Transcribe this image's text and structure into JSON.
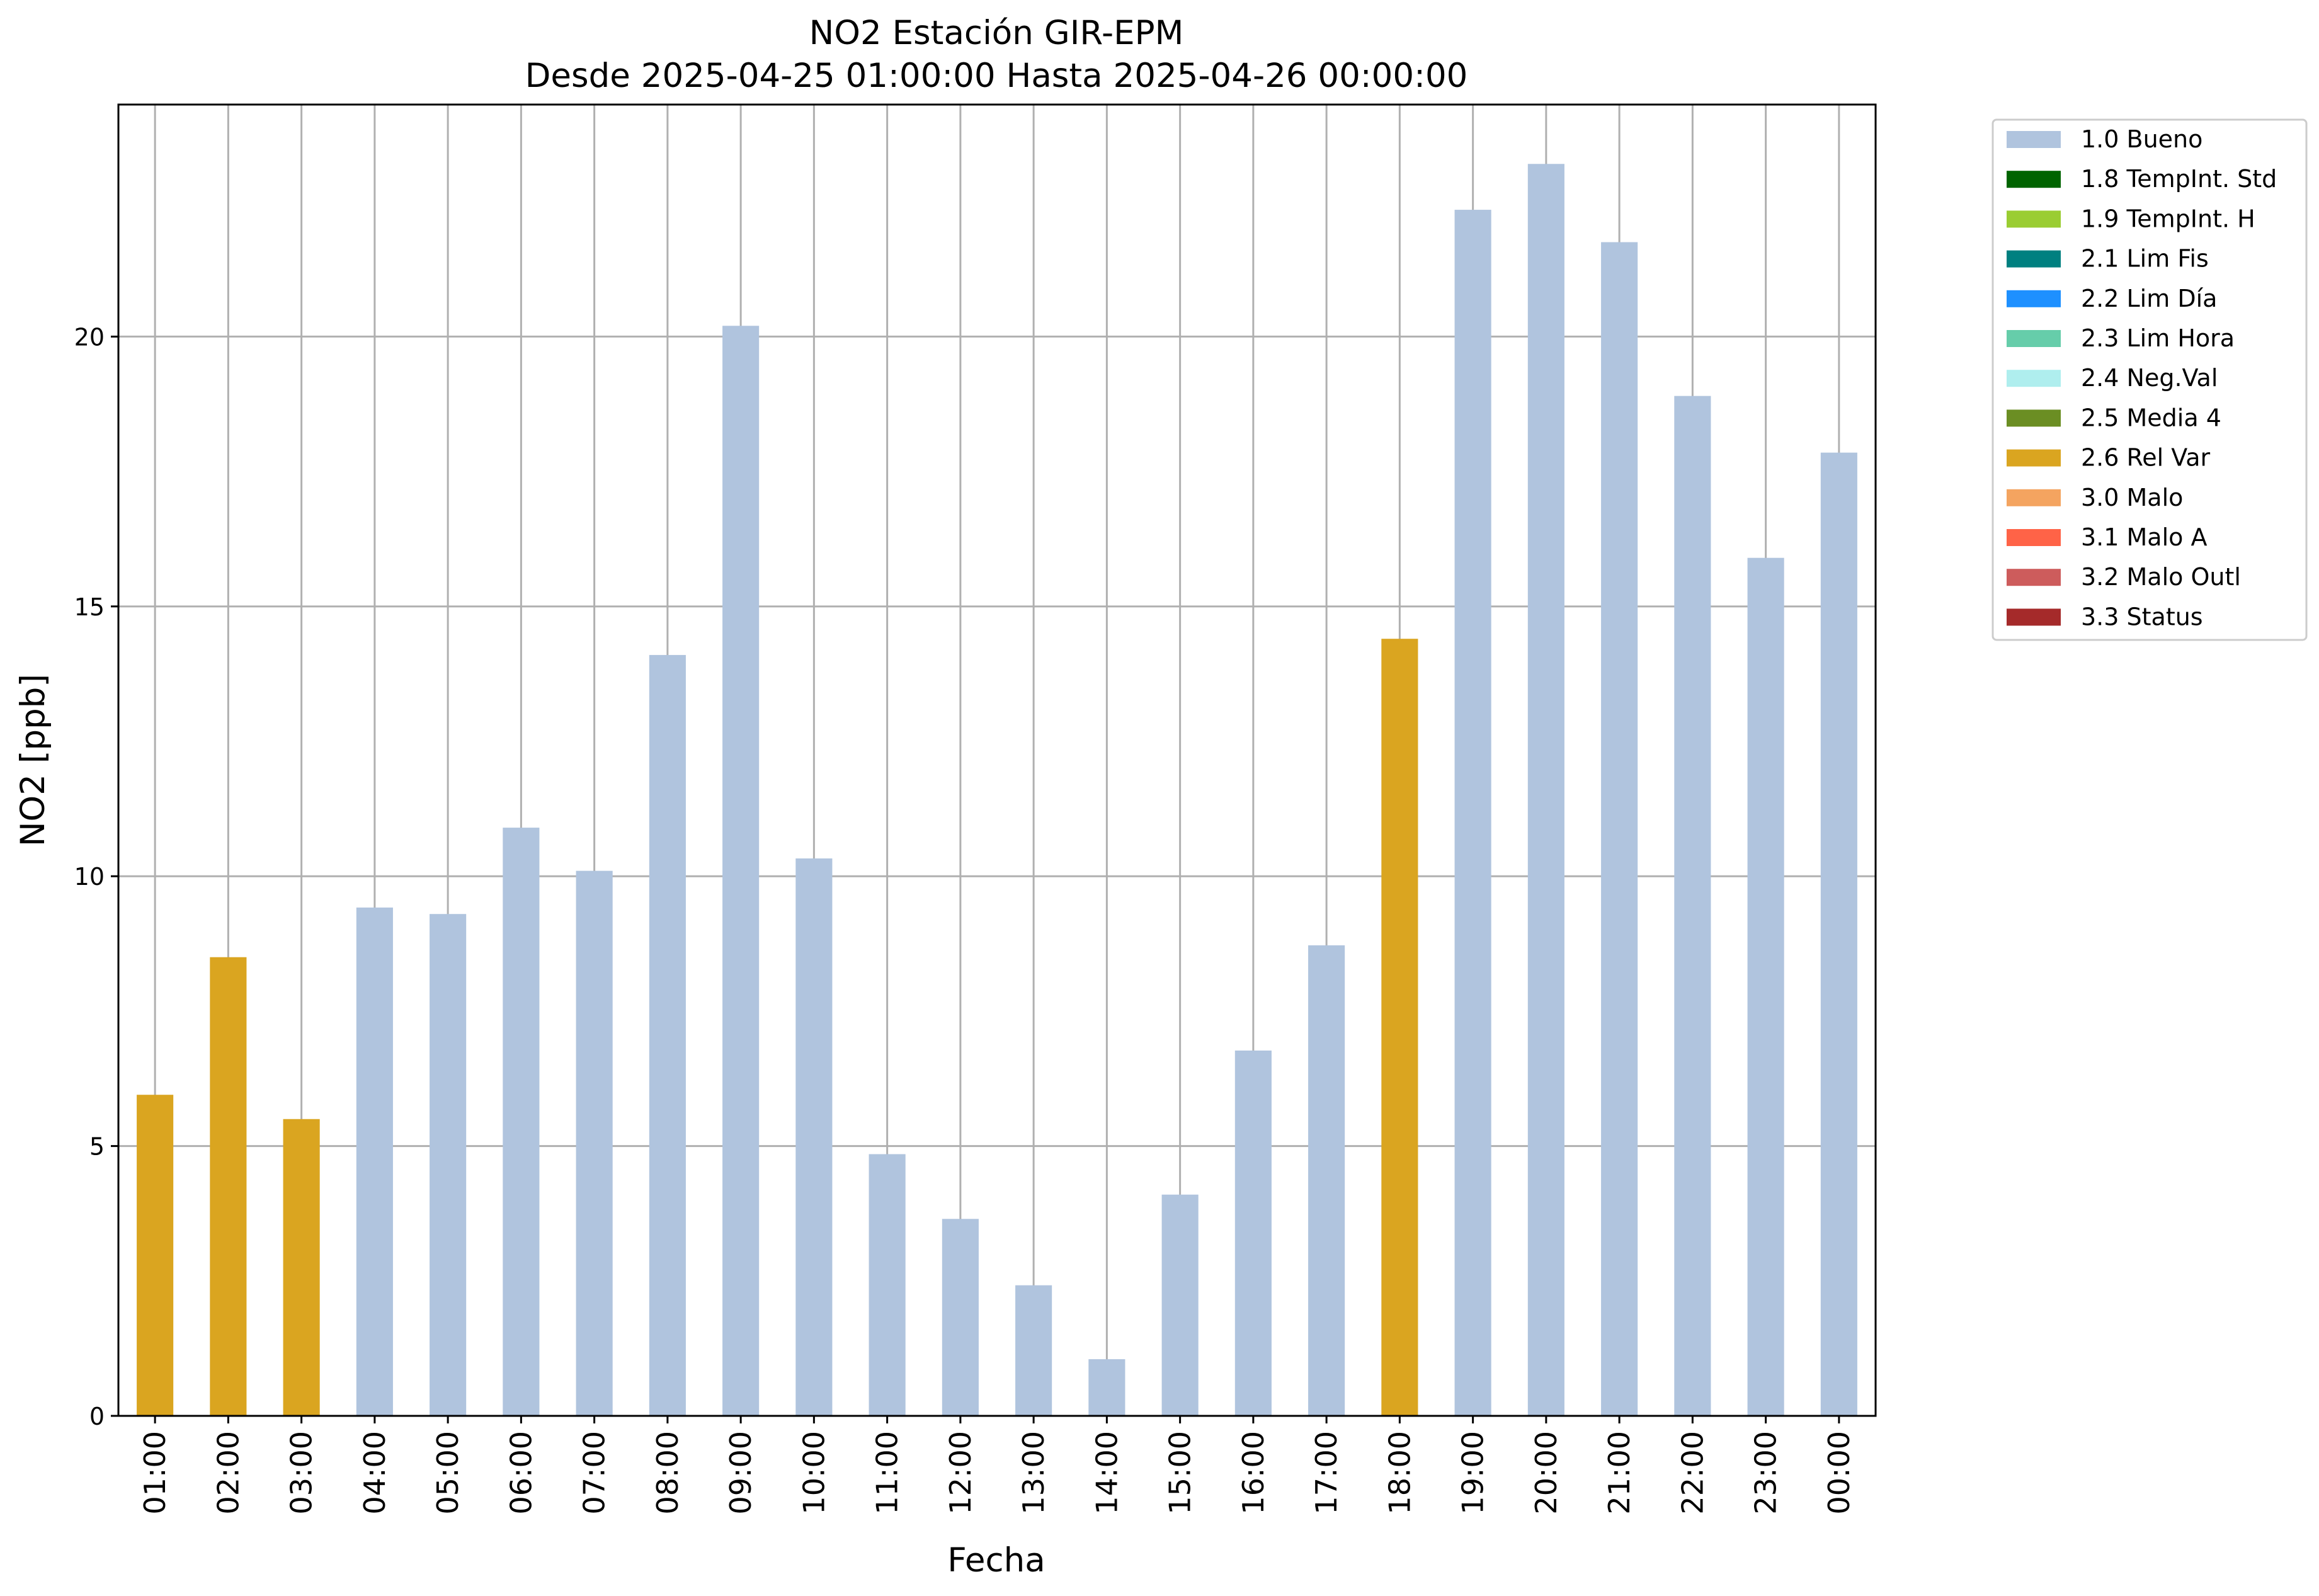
{
  "chart_data": {
    "type": "bar",
    "title": "NO2 Estación GIR-EPM",
    "subtitle": "Desde 2025-04-25 01:00:00 Hasta 2025-04-26 00:00:00",
    "xlabel": "Fecha",
    "ylabel": "NO2 [ppb]",
    "ylim": [
      0,
      24.3
    ],
    "yticks": [
      "0",
      "5",
      "10",
      "15",
      "20"
    ],
    "grid": true,
    "legend_position": "outside-top-right",
    "categories": [
      "01:00",
      "02:00",
      "03:00",
      "04:00",
      "05:00",
      "06:00",
      "07:00",
      "08:00",
      "09:00",
      "10:00",
      "11:00",
      "12:00",
      "13:00",
      "14:00",
      "15:00",
      "16:00",
      "17:00",
      "18:00",
      "19:00",
      "20:00",
      "21:00",
      "22:00",
      "23:00",
      "00:00"
    ],
    "values": [
      5.95,
      8.5,
      5.5,
      9.42,
      9.3,
      10.9,
      10.1,
      14.1,
      20.2,
      10.33,
      4.85,
      3.65,
      2.42,
      1.05,
      4.1,
      6.77,
      8.72,
      14.4,
      22.35,
      23.2,
      21.75,
      18.9,
      15.9,
      17.85
    ],
    "value_flags": [
      "2.6 Rel Var",
      "2.6 Rel Var",
      "2.6 Rel Var",
      "1.0 Bueno",
      "1.0 Bueno",
      "1.0 Bueno",
      "1.0 Bueno",
      "1.0 Bueno",
      "1.0 Bueno",
      "1.0 Bueno",
      "1.0 Bueno",
      "1.0 Bueno",
      "1.0 Bueno",
      "1.0 Bueno",
      "1.0 Bueno",
      "1.0 Bueno",
      "1.0 Bueno",
      "2.6 Rel Var",
      "1.0 Bueno",
      "1.0 Bueno",
      "1.0 Bueno",
      "1.0 Bueno",
      "1.0 Bueno",
      "1.0 Bueno"
    ],
    "legend": [
      {
        "name": "1.0 Bueno",
        "color": "#b0c4de"
      },
      {
        "name": "1.8 TempInt. Std",
        "color": "#006400"
      },
      {
        "name": "1.9 TempInt. H",
        "color": "#9acd32"
      },
      {
        "name": "2.1 Lim Fis",
        "color": "#008080"
      },
      {
        "name": "2.2 Lim Día",
        "color": "#1e90ff"
      },
      {
        "name": "2.3 Lim Hora",
        "color": "#66cdaa"
      },
      {
        "name": "2.4 Neg.Val",
        "color": "#afeeee"
      },
      {
        "name": "2.5 Media 4",
        "color": "#6b8e23"
      },
      {
        "name": "2.6 Rel Var",
        "color": "#daa520"
      },
      {
        "name": "3.0 Malo",
        "color": "#f4a460"
      },
      {
        "name": "3.1 Malo A",
        "color": "#ff6347"
      },
      {
        "name": "3.2 Malo Outl",
        "color": "#cd5c5c"
      },
      {
        "name": "3.3 Status",
        "color": "#a52a2a"
      }
    ]
  }
}
